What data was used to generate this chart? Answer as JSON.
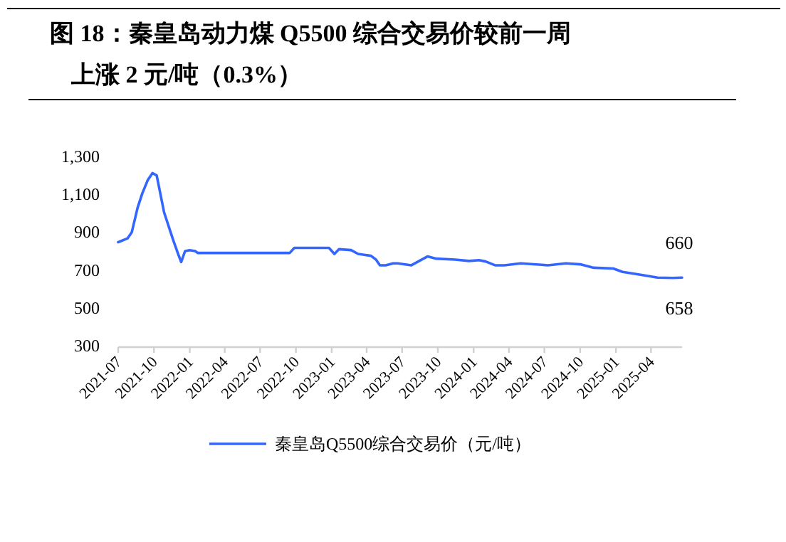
{
  "chart_data": {
    "type": "line",
    "title": "图 18：秦皇岛动力煤 Q5500 综合交易价较前一周上涨 2 元/吨（0.3%）",
    "x": [
      "2021-07-01",
      "2021-07-25",
      "2021-08-05",
      "2021-08-20",
      "2021-09-01",
      "2021-09-15",
      "2021-09-27",
      "2021-10-08",
      "2021-10-27",
      "2021-11-20",
      "2021-12-03",
      "2021-12-10",
      "2021-12-20",
      "2022-01-01",
      "2022-01-15",
      "2022-01-22",
      "2022-09-15",
      "2022-09-27",
      "2022-12-25",
      "2023-01-08",
      "2023-01-20",
      "2023-02-20",
      "2023-03-10",
      "2023-04-12",
      "2023-04-25",
      "2023-05-05",
      "2023-05-20",
      "2023-06-08",
      "2023-06-20",
      "2023-07-25",
      "2023-09-05",
      "2023-09-27",
      "2023-11-15",
      "2023-12-20",
      "2024-01-15",
      "2024-02-01",
      "2024-02-25",
      "2024-03-20",
      "2024-05-01",
      "2024-07-10",
      "2024-08-25",
      "2024-10-01",
      "2024-11-05",
      "2024-12-25",
      "2025-01-18",
      "2025-03-05",
      "2025-04-18",
      "2025-05-27",
      "2025-06-20"
    ],
    "series": [
      {
        "name": "秦皇岛Q5500综合交易价（元/吨）",
        "color": "#3366ff",
        "values": [
          847,
          867,
          900,
          1030,
          1105,
          1175,
          1212,
          1200,
          1005,
          855,
          780,
          742,
          800,
          805,
          800,
          790,
          790,
          817,
          817,
          785,
          810,
          805,
          785,
          775,
          755,
          725,
          725,
          735,
          735,
          725,
          772,
          760,
          755,
          748,
          752,
          745,
          725,
          725,
          735,
          725,
          735,
          730,
          712,
          708,
          690,
          675,
          660,
          658,
          660
        ]
      }
    ],
    "xlim": [
      "2021-07-01",
      "2025-06-20"
    ],
    "xticks": [
      "2021-07",
      "2021-10",
      "2022-01",
      "2022-04",
      "2022-07",
      "2022-10",
      "2023-01",
      "2023-04",
      "2023-07",
      "2023-10",
      "2024-01",
      "2024-04",
      "2024-07",
      "2024-10",
      "2025-01",
      "2025-04"
    ],
    "ylim": [
      300,
      1300
    ],
    "yticks": [
      {
        "value": 300,
        "label": "300"
      },
      {
        "value": 500,
        "label": "500"
      },
      {
        "value": 700,
        "label": "700"
      },
      {
        "value": 900,
        "label": "900"
      },
      {
        "value": 1100,
        "label": "1,100"
      },
      {
        "value": 1300,
        "label": "1,300"
      }
    ],
    "annotations": [
      "660",
      "658"
    ],
    "legend": "bottom",
    "grid": false,
    "marker": "none",
    "line_style": "solid"
  }
}
